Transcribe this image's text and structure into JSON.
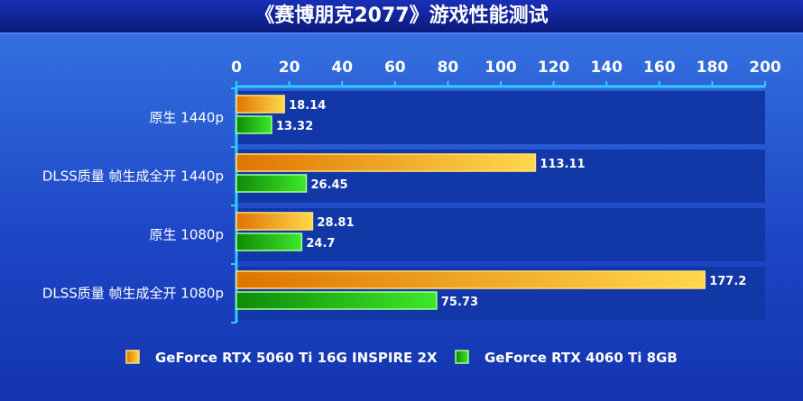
{
  "chart_data": {
    "type": "bar",
    "orientation": "horizontal",
    "title": "《赛博朋克2077》游戏性能测试",
    "categories": [
      "原生 1440p",
      "DLSS质量 帧生成全开 1440p",
      "原生 1080p",
      "DLSS质量 帧生成全开 1080p"
    ],
    "series": [
      {
        "name": "GeForce RTX 5060 Ti 16G INSPIRE 2X",
        "values": [
          18.14,
          113.11,
          28.81,
          177.2
        ],
        "value_labels": [
          "18.14",
          "113.11",
          "28.81",
          "177.2"
        ],
        "color": "#f5a000"
      },
      {
        "name": "GeForce RTX 4060 Ti 8GB",
        "values": [
          13.32,
          26.45,
          24.7,
          75.73
        ],
        "value_labels": [
          "13.32",
          "26.45",
          "24.7",
          "75.73"
        ],
        "color": "#22c010"
      }
    ],
    "xlim": [
      0,
      200
    ],
    "ticks": [
      "0",
      "20",
      "40",
      "60",
      "80",
      "100",
      "120",
      "140",
      "160",
      "180",
      "200"
    ],
    "tick_values": [
      0,
      20,
      40,
      60,
      80,
      100,
      120,
      140,
      160,
      180,
      200
    ],
    "axis_position": "top",
    "legend_position": "bottom-center",
    "colors": {
      "background": "#0b1f8a",
      "row_fill": "#1238a8",
      "axis": "#33ccff",
      "text": "#ffffff"
    }
  }
}
